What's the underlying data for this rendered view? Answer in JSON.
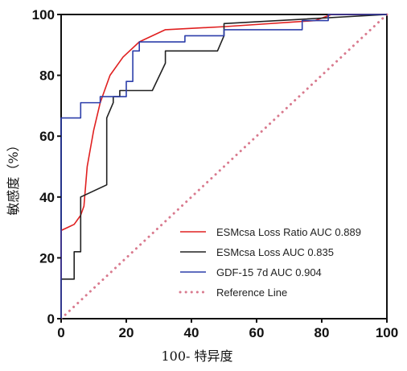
{
  "chart_data": {
    "type": "line",
    "title": "",
    "xlabel": "100- 特异度",
    "ylabel": "敏感度（%）",
    "xlim": [
      0,
      100
    ],
    "ylim": [
      0,
      100
    ],
    "x_ticks": [
      0,
      20,
      40,
      60,
      80,
      100
    ],
    "y_ticks": [
      0,
      20,
      40,
      60,
      80,
      100
    ],
    "grid": false,
    "legend_position": "bottom-right",
    "series": [
      {
        "name": "ESMcsa Loss Ratio AUC 0.889",
        "color": "#e02020",
        "style": "solid",
        "x": [
          0,
          0,
          2,
          4,
          6,
          7,
          8,
          10,
          12,
          15,
          19,
          24,
          32,
          50,
          78,
          83,
          100
        ],
        "y": [
          0,
          29,
          30,
          31,
          34,
          37,
          50,
          62,
          71,
          80,
          86,
          91,
          95,
          96,
          98,
          100,
          100
        ]
      },
      {
        "name": "ESMcsa Loss AUC 0.835",
        "color": "#222222",
        "style": "solid",
        "x": [
          0,
          0,
          4,
          4,
          6,
          6,
          14,
          14,
          16,
          16,
          18,
          18,
          28,
          32,
          32,
          48,
          50,
          50,
          100
        ],
        "y": [
          0,
          13,
          13,
          22,
          22,
          40,
          44,
          66,
          71,
          73,
          73,
          75,
          75,
          84,
          88,
          88,
          93,
          97,
          100
        ]
      },
      {
        "name": "GDF-15 7d AUC 0.904",
        "color": "#2c3eaa",
        "style": "solid",
        "x": [
          0,
          0,
          6,
          6,
          12,
          12,
          20,
          20,
          22,
          22,
          24,
          24,
          38,
          38,
          50,
          50,
          74,
          74,
          82,
          82,
          100
        ],
        "y": [
          0,
          66,
          66,
          71,
          71,
          73,
          73,
          78,
          78,
          88,
          88,
          91,
          91,
          93,
          93,
          95,
          95,
          98,
          98,
          100,
          100
        ]
      },
      {
        "name": "Reference Line",
        "color": "#d97a8e",
        "style": "dotted",
        "x": [
          0,
          100
        ],
        "y": [
          0,
          100
        ]
      }
    ]
  }
}
